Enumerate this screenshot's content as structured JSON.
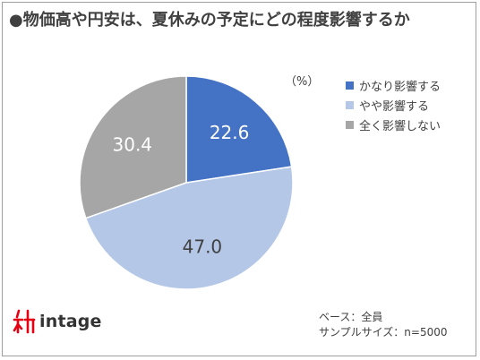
{
  "title": "●物価高や円安は、夏休みの予定にどの程度影響するか",
  "unit_label": "（%）",
  "base_note": [
    "ベース：全員",
    "サンプルサイズ：n=5000"
  ],
  "brand": {
    "name": "intage",
    "mark_icon": "intage-logo-mark-icon",
    "mark_color": "#e60012"
  },
  "chart_data": {
    "type": "pie",
    "title": "●物価高や円安は、夏休みの予定にどの程度影響するか",
    "unit": "（%）",
    "start_angle_deg": 0,
    "direction": "clockwise",
    "legend_position": "right",
    "categories": [
      "かなり影響する",
      "やや影響する",
      "全く影響しない"
    ],
    "values": [
      22.6,
      47.0,
      30.4
    ],
    "labels": [
      "22.6",
      "47.0",
      "30.4"
    ],
    "colors": [
      "#4472c4",
      "#b4c7e7",
      "#a6a6a6"
    ],
    "label_colors": [
      "#ffffff",
      "#404040",
      "#ffffff"
    ]
  }
}
